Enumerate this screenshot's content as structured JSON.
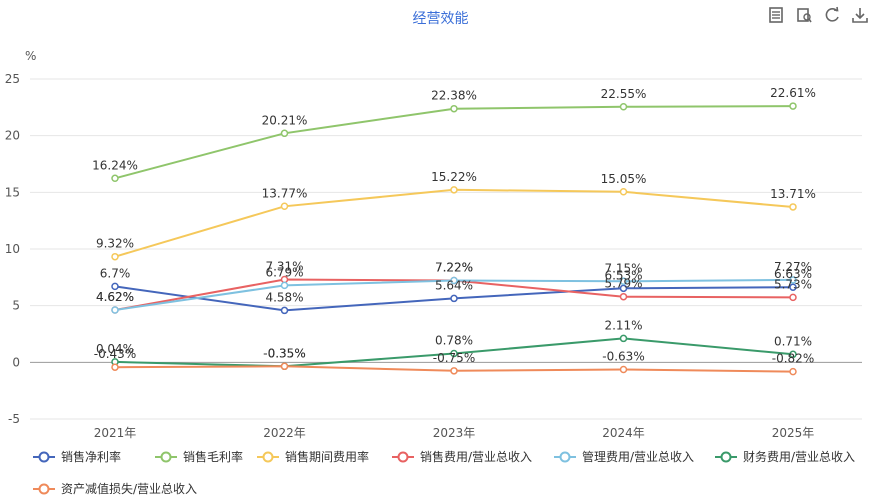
{
  "chart_data": {
    "type": "line",
    "title": "经营效能",
    "ylabel": "%",
    "ylim": [
      -5,
      25
    ],
    "yticks": [
      -5,
      0,
      5,
      10,
      15,
      20,
      25
    ],
    "categories": [
      "2021年",
      "2022年",
      "2023年",
      "2024年",
      "2025年"
    ],
    "grid": true,
    "legend_position": "bottom",
    "series": [
      {
        "name": "销售净利率",
        "color": "#4466bb",
        "values": [
          6.7,
          4.58,
          5.64,
          6.53,
          6.63
        ],
        "labels": [
          "6.7%",
          "4.58%",
          "5.64%",
          "6.53%",
          "6.63%"
        ]
      },
      {
        "name": "销售毛利率",
        "color": "#8fc56b",
        "values": [
          16.24,
          20.21,
          22.38,
          22.55,
          22.61
        ],
        "labels": [
          "16.24%",
          "20.21%",
          "22.38%",
          "22.55%",
          "22.61%"
        ]
      },
      {
        "name": "销售期间费用率",
        "color": "#f5c85a",
        "values": [
          9.32,
          13.77,
          15.22,
          15.05,
          13.71
        ],
        "labels": [
          "9.32%",
          "13.77%",
          "15.22%",
          "15.05%",
          "13.71%"
        ]
      },
      {
        "name": "销售费用/营业总收入",
        "color": "#e86262",
        "values": [
          4.62,
          7.31,
          7.22,
          5.79,
          5.73
        ],
        "labels": [
          "4.62%",
          "7.31%",
          "7.22%",
          "5.79%",
          "5.73%"
        ]
      },
      {
        "name": "管理费用/营业总收入",
        "color": "#7ec1e0",
        "values": [
          4.62,
          6.79,
          7.22,
          7.15,
          7.27
        ],
        "labels": [
          "4.62%",
          "6.79%",
          "7.22%",
          "7.15%",
          "7.27%"
        ]
      },
      {
        "name": "财务费用/营业总收入",
        "color": "#3a9a6a",
        "values": [
          0.04,
          -0.35,
          0.78,
          2.11,
          0.71
        ],
        "labels": [
          "0.04%",
          "-0.35%",
          "0.78%",
          "2.11%",
          "0.71%"
        ]
      },
      {
        "name": "资产减值损失/营业总收入",
        "color": "#ef8a5a",
        "values": [
          -0.43,
          -0.35,
          -0.75,
          -0.63,
          -0.82
        ],
        "labels": [
          "-0.43%",
          "-0.35%",
          "-0.75%",
          "-0.63%",
          "-0.82%"
        ]
      }
    ]
  },
  "toolbar": {
    "icons": [
      "data-view-icon",
      "restore-icon",
      "refresh-icon",
      "download-icon"
    ]
  }
}
